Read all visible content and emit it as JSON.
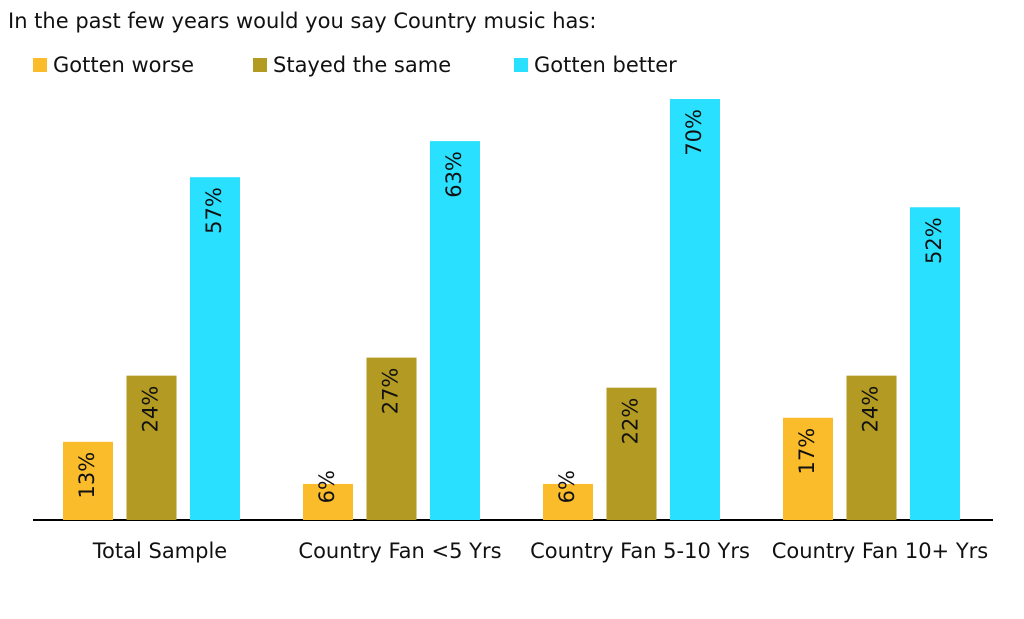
{
  "chart_data": {
    "type": "bar",
    "title": "In the past few years would you say Country music has:",
    "categories": [
      "Total Sample",
      "Country Fan <5 Yrs",
      "Country Fan 5-10 Yrs",
      "Country Fan 10+ Yrs"
    ],
    "series": [
      {
        "name": "Gotten worse",
        "color": "#fbbc2c",
        "values": [
          13,
          6,
          6,
          17
        ],
        "value_labels": [
          "13%",
          "6%",
          "6%",
          "17%"
        ]
      },
      {
        "name": "Stayed the same",
        "color": "#b39a22",
        "values": [
          24,
          27,
          22,
          24
        ],
        "value_labels": [
          "24%",
          "27%",
          "22%",
          "24%"
        ]
      },
      {
        "name": "Gotten better",
        "color": "#29e1ff",
        "values": [
          57,
          63,
          70,
          52
        ],
        "value_labels": [
          "57%",
          "63%",
          "70%",
          "52%"
        ]
      }
    ],
    "legend": "top-left"
  }
}
